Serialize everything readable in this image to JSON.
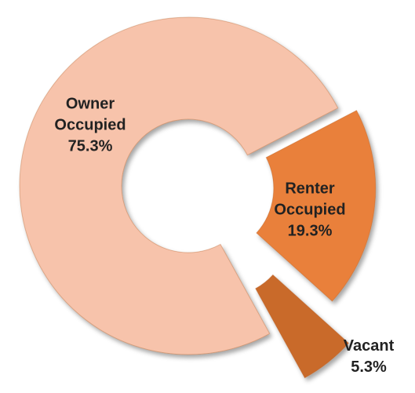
{
  "chart_data": {
    "type": "donut",
    "categories": [
      "Owner Occupied",
      "Renter Occupied",
      "Vacant"
    ],
    "values": [
      75.3,
      19.3,
      5.3
    ],
    "value_labels": [
      "75.3%",
      "19.3%",
      "5.3%"
    ],
    "colors": [
      "#f7c3ab",
      "#e9803a",
      "#c96a2c"
    ]
  }
}
